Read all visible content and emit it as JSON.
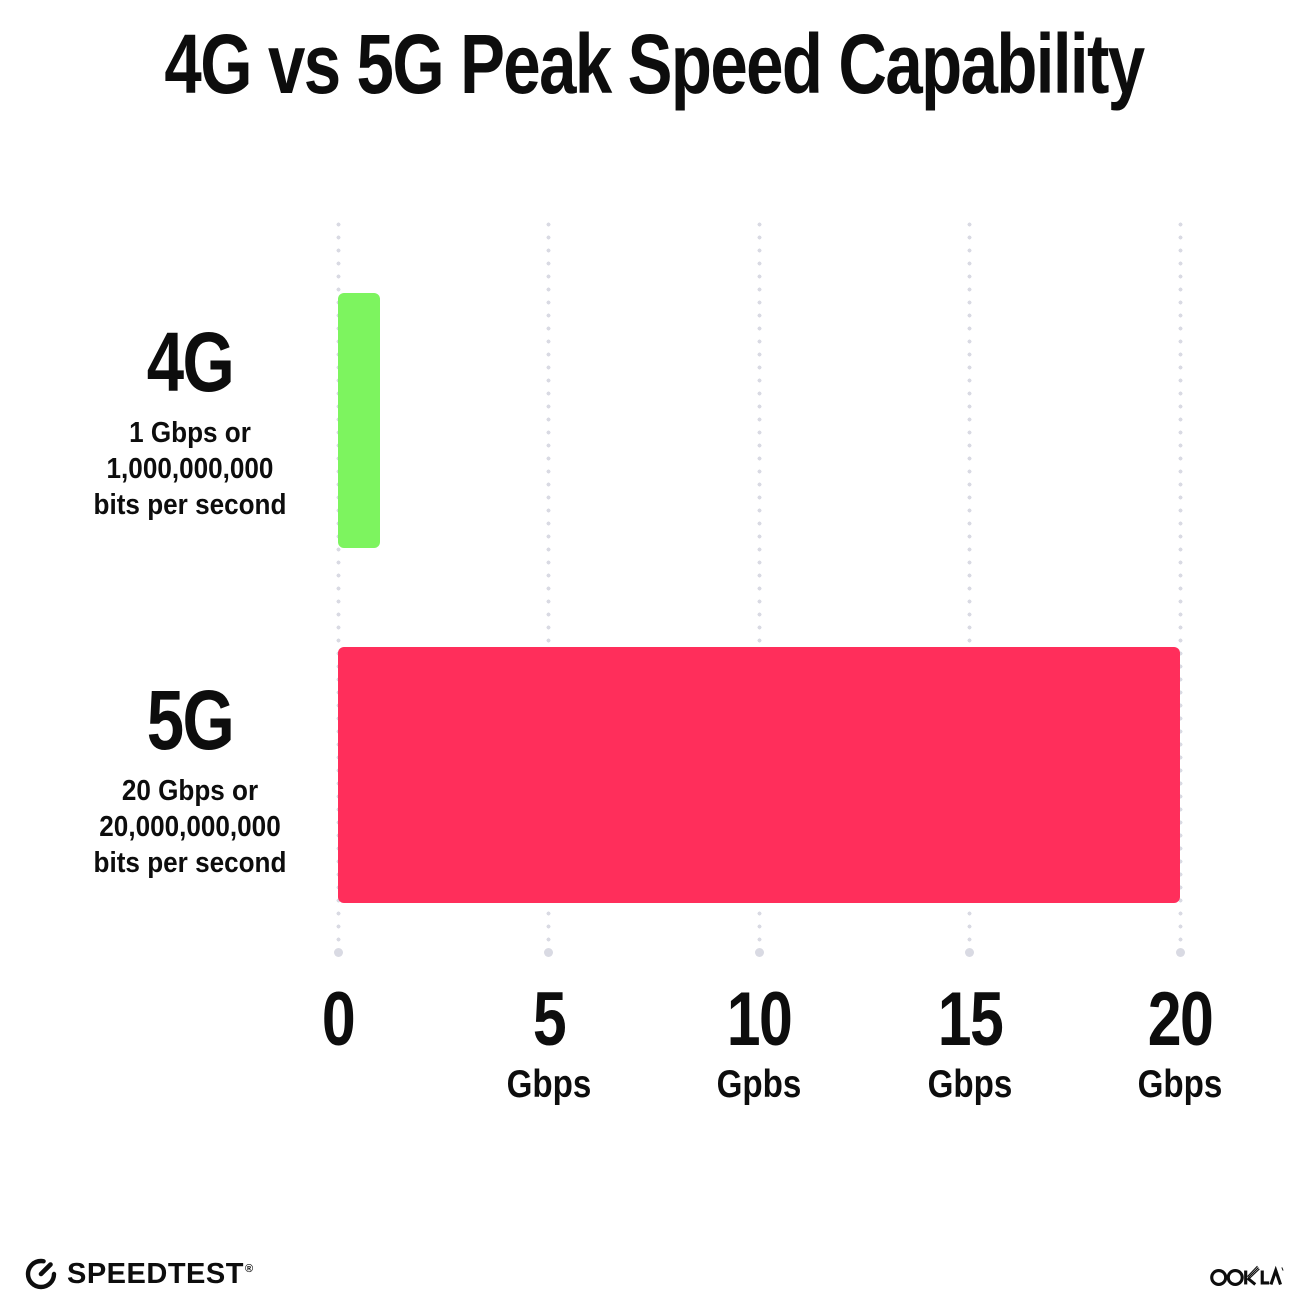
{
  "title": "4G vs 5G Peak Speed Capability",
  "chart_data": {
    "type": "bar",
    "orientation": "horizontal",
    "title": "4G vs 5G Peak Speed Capability",
    "categories": [
      "4G",
      "5G"
    ],
    "values": [
      1,
      20
    ],
    "unit": "Gbps",
    "xlim": [
      0,
      20
    ],
    "x_tick_values": [
      0,
      5,
      10,
      15,
      20
    ],
    "bar_colors": [
      "#7DF45F",
      "#FF2E5B"
    ],
    "grid": "dotted-vertical-gridlines",
    "legend": "none",
    "annotations": [
      "4G: 1 Gbps or 1,000,000,000 bits per second",
      "5G: 20 Gbps or 20,000,000,000 bits per second"
    ]
  },
  "rows": [
    {
      "label": "4G",
      "desc_line1": "1 Gbps or",
      "desc_line2": "1,000,000,000",
      "desc_line3": "bits per second"
    },
    {
      "label": "5G",
      "desc_line1": "20 Gbps or",
      "desc_line2": "20,000,000,000",
      "desc_line3": "bits per second"
    }
  ],
  "x_axis": {
    "ticks": [
      {
        "label": "0",
        "unit": ""
      },
      {
        "label": "5",
        "unit": "Gbps"
      },
      {
        "label": "10",
        "unit": "Gpbs"
      },
      {
        "label": "15",
        "unit": "Gbps"
      },
      {
        "label": "20",
        "unit": "Gbps"
      }
    ]
  },
  "footer": {
    "speedtest_label": "SPEEDTEST",
    "speedtest_trademark": "®",
    "ookla_label": "OOKLA"
  },
  "colors": {
    "bar_4g": "#7DF45F",
    "bar_5g": "#FF2E5B",
    "gridline": "#D9DAE3",
    "text": "#0D0D0D",
    "background": "#FFFFFF"
  }
}
